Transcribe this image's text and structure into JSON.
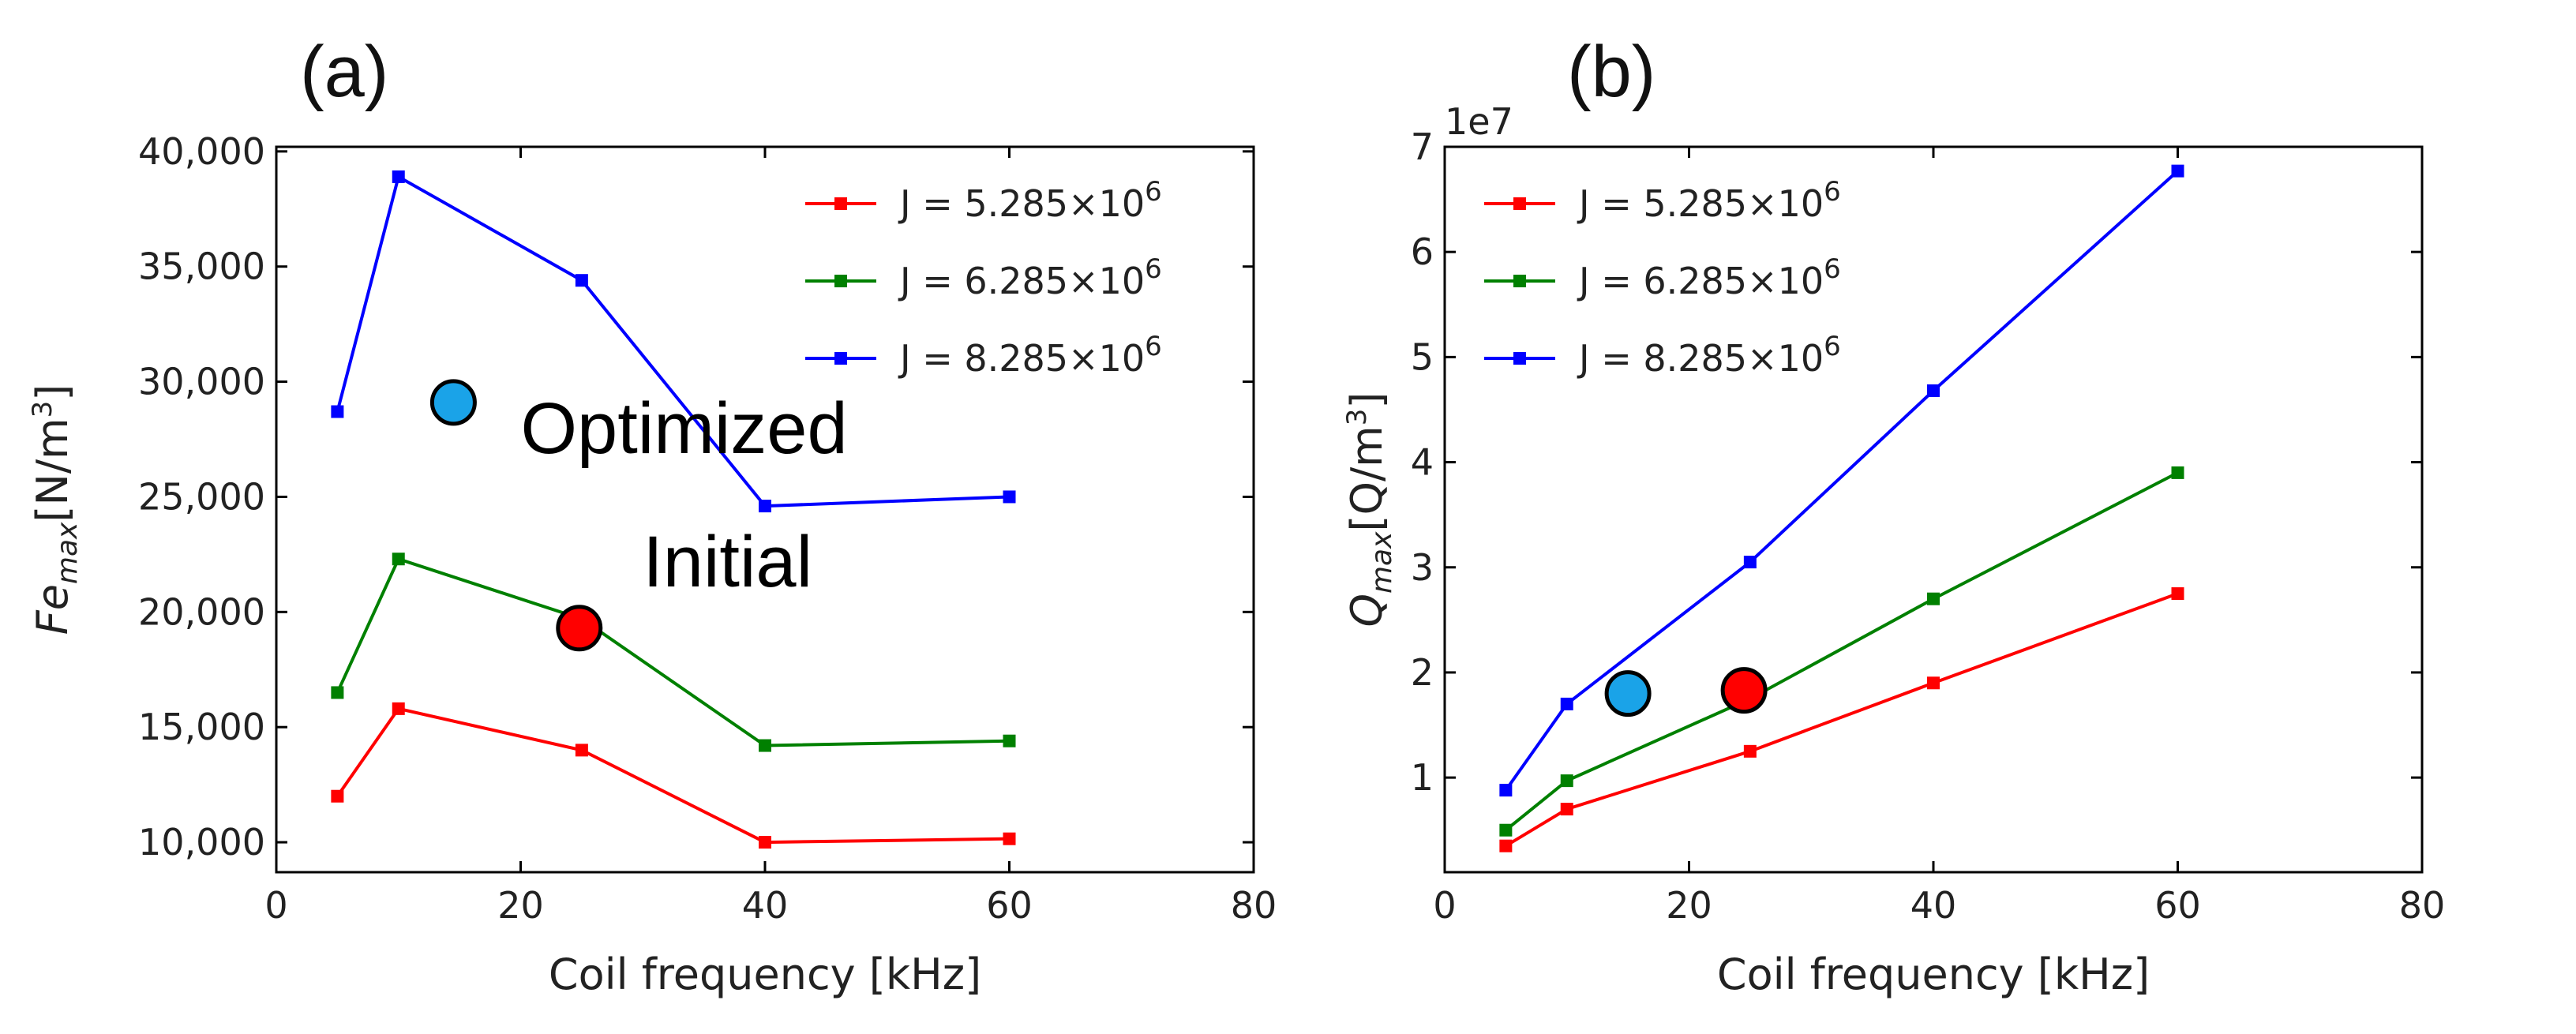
{
  "chart_data": [
    {
      "panel": "(a)",
      "type": "line",
      "title": "",
      "xlabel": "Coil frequency [kHz]",
      "ylabel": {
        "base": "Fe",
        "sub": "max",
        "units": "[N/m",
        "units_sup": "3",
        "units_end": "]"
      },
      "xlim": [
        0,
        80
      ],
      "ylim": [
        8700,
        40200
      ],
      "xticks": [
        0,
        20,
        40,
        60,
        80
      ],
      "xtick_labels": [
        "0",
        "20",
        "40",
        "60",
        "80"
      ],
      "yticks": [
        10000,
        15000,
        20000,
        25000,
        30000,
        35000,
        40000
      ],
      "ytick_labels": [
        "10,000",
        "15,000",
        "20,000",
        "25,000",
        "30,000",
        "35,000",
        "40,000"
      ],
      "sci_label": "",
      "legend_position": "top-right",
      "series": [
        {
          "name": "J = 5.285×10",
          "name_sup": "6",
          "color": "#ff0000",
          "x": [
            5,
            10,
            25,
            40,
            60
          ],
          "y": [
            12000,
            15800,
            14000,
            10000,
            10150
          ]
        },
        {
          "name": "J = 6.285×10",
          "name_sup": "6",
          "color": "#008000",
          "x": [
            5,
            10,
            25,
            40,
            60
          ],
          "y": [
            16500,
            22300,
            19700,
            14200,
            14400
          ]
        },
        {
          "name": "J = 8.285×10",
          "name_sup": "6",
          "color": "#0000ff",
          "x": [
            5,
            10,
            25,
            40,
            60
          ],
          "y": [
            28700,
            38900,
            34400,
            24600,
            25000
          ]
        }
      ],
      "markers": [
        {
          "name": "optimized",
          "x": 14.5,
          "y": 29100,
          "color": "#1aa3e8"
        },
        {
          "name": "initial",
          "x": 24.8,
          "y": 19300,
          "color": "#ff0000"
        }
      ],
      "annotations": [
        {
          "text": "Optimized",
          "x": 20,
          "y": 26900
        },
        {
          "text": "Initial",
          "x": 30,
          "y": 21100
        }
      ]
    },
    {
      "panel": "(b)",
      "type": "line",
      "title": "",
      "xlabel": "Coil frequency [kHz]",
      "ylabel": {
        "base": "Q",
        "sub": "max",
        "units": "[Q/m",
        "units_sup": "3",
        "units_end": "]"
      },
      "xlim": [
        0,
        80
      ],
      "ylim": [
        0.1,
        7.0
      ],
      "xticks": [
        0,
        20,
        40,
        60,
        80
      ],
      "xtick_labels": [
        "0",
        "20",
        "40",
        "60",
        "80"
      ],
      "yticks": [
        1,
        2,
        3,
        4,
        5,
        6,
        7
      ],
      "ytick_labels": [
        "1",
        "2",
        "3",
        "4",
        "5",
        "6",
        "7"
      ],
      "sci_label": "1e7",
      "legend_position": "top-left",
      "series": [
        {
          "name": "J = 5.285×10",
          "name_sup": "6",
          "color": "#ff0000",
          "x": [
            5,
            10,
            25,
            40,
            60
          ],
          "y": [
            0.35,
            0.7,
            1.25,
            1.9,
            2.75
          ]
        },
        {
          "name": "J = 6.285×10",
          "name_sup": "6",
          "color": "#008000",
          "x": [
            5,
            10,
            25,
            40,
            60
          ],
          "y": [
            0.5,
            0.97,
            1.75,
            2.7,
            3.9
          ]
        },
        {
          "name": "J = 8.285×10",
          "name_sup": "6",
          "color": "#0000ff",
          "x": [
            5,
            10,
            25,
            40,
            60
          ],
          "y": [
            0.88,
            1.7,
            3.05,
            4.68,
            6.77
          ]
        }
      ],
      "markers": [
        {
          "name": "optimized",
          "x": 15,
          "y": 1.8,
          "color": "#1aa3e8"
        },
        {
          "name": "initial",
          "x": 24.5,
          "y": 1.83,
          "color": "#ff0000"
        }
      ],
      "annotations": []
    }
  ]
}
